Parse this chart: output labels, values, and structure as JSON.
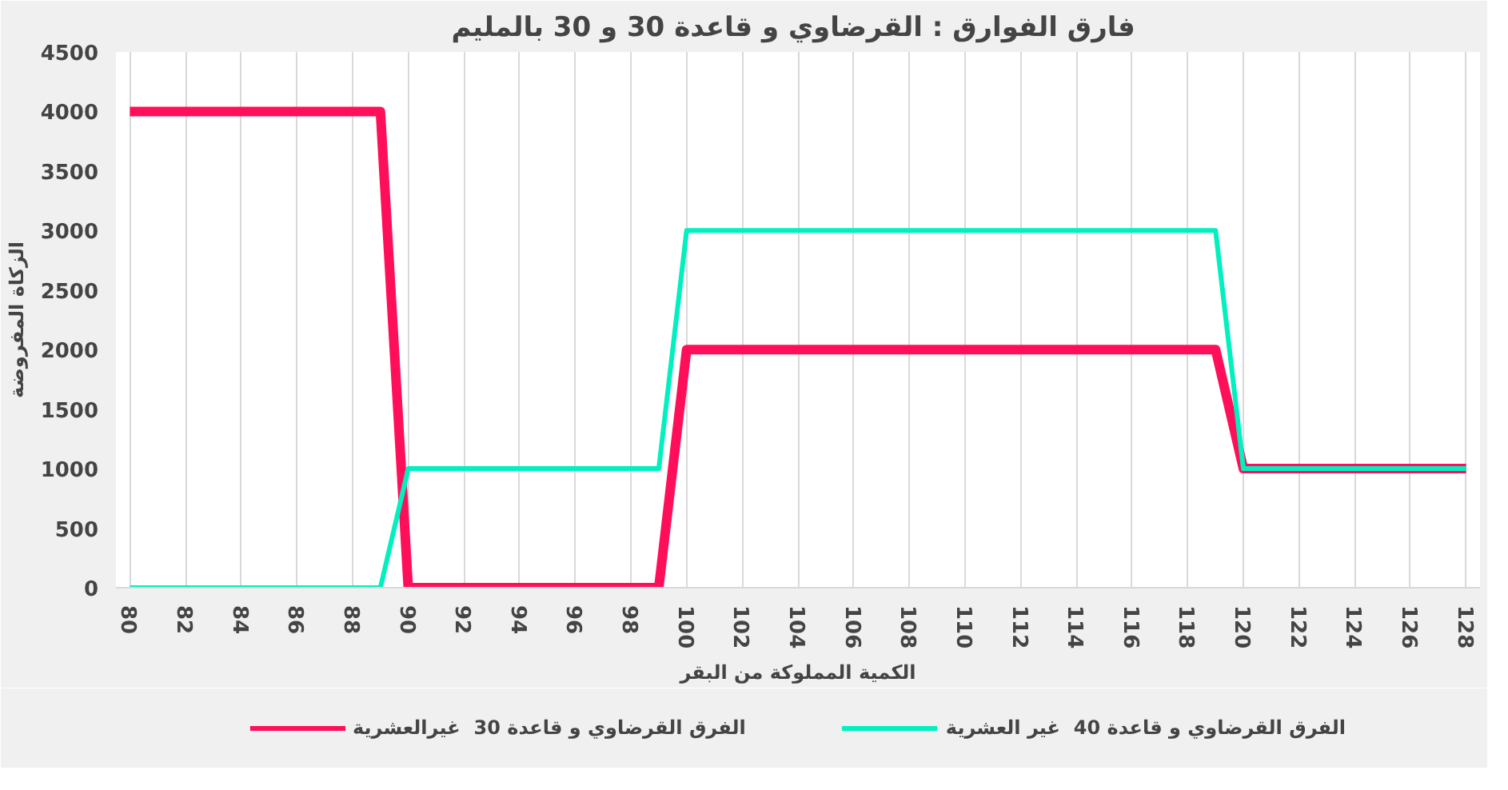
{
  "chart_data": {
    "type": "line",
    "title": "فارق الفوارق : القرضاوي و قاعدة 30 و 30  بالمليم",
    "xlabel": "الكمية المملوكة من البقر",
    "ylabel": "الزكاة المفروضة",
    "x": [
      80,
      89,
      90,
      99,
      100,
      119,
      120,
      128
    ],
    "series": [
      {
        "name": "الفرق القرضاوي و قاعدة 30  غيرالعشرية",
        "color": "#ff0f5a",
        "values": [
          4000,
          4000,
          0,
          0,
          2000,
          2000,
          1000,
          1000
        ]
      },
      {
        "name": "الفرق القرضاوي و قاعدة 40  غير العشرية",
        "color": "#00f0c0",
        "values": [
          0,
          0,
          1000,
          1000,
          3000,
          3000,
          1000,
          1000
        ]
      }
    ],
    "xlim": [
      79.5,
      128.5
    ],
    "xticks": [
      80,
      82,
      84,
      86,
      88,
      90,
      92,
      94,
      96,
      98,
      100,
      102,
      104,
      106,
      108,
      110,
      112,
      114,
      116,
      118,
      120,
      122,
      124,
      126,
      128
    ],
    "ylim": [
      0,
      4500
    ],
    "yticks": [
      0,
      500,
      1000,
      1500,
      2000,
      2500,
      3000,
      3500,
      4000,
      4500
    ],
    "grid": "x",
    "legend": "bottom",
    "marker": "none",
    "line_style": "solid"
  }
}
